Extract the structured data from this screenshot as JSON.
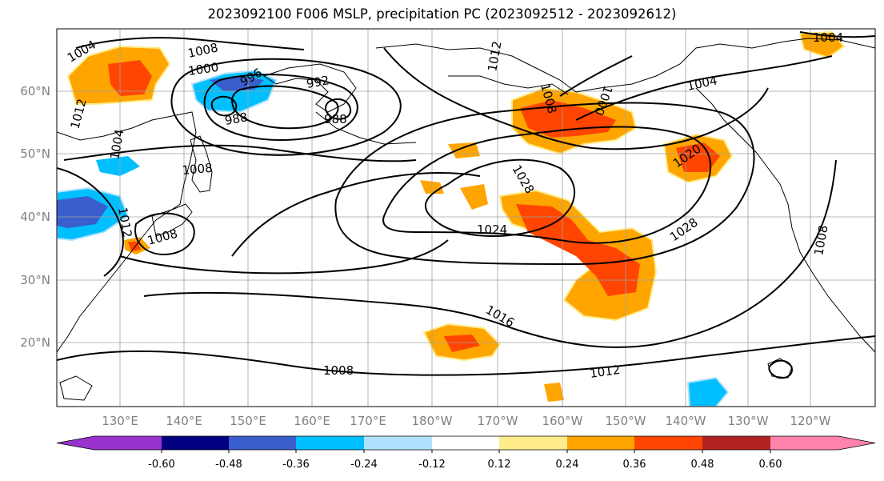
{
  "title": "2023092100 F006 MSLP, precipitation PC (2023092512 - 2023092612)",
  "lat_ticks": [
    "60°N",
    "50°N",
    "40°N",
    "30°N",
    "20°N"
  ],
  "lon_ticks": [
    "130°E",
    "140°E",
    "150°E",
    "160°E",
    "170°E",
    "180°W",
    "170°W",
    "160°W",
    "150°W",
    "140°W",
    "130°W",
    "120°W"
  ],
  "isobar_labels": [
    "1004",
    "1008",
    "1000",
    "996",
    "992",
    "988",
    "988",
    "1012",
    "1004",
    "1008",
    "1012",
    "1008",
    "1012",
    "1000",
    "1004",
    "1008",
    "1004",
    "1020",
    "1028",
    "1024",
    "1028",
    "1016",
    "1008",
    "1012",
    "1008"
  ],
  "colorbar": {
    "colors": [
      "#9932cc",
      "#000080",
      "#3a5fcd",
      "#00bfff",
      "#b0e2ff",
      "#ffffff",
      "#ffec8b",
      "#ffa500",
      "#ff4500",
      "#b22222",
      "#ff83ab"
    ],
    "tick_labels": [
      "-0.60",
      "-0.48",
      "-0.36",
      "-0.24",
      "-0.12",
      "0.12",
      "0.24",
      "0.36",
      "0.48",
      "0.60"
    ]
  }
}
